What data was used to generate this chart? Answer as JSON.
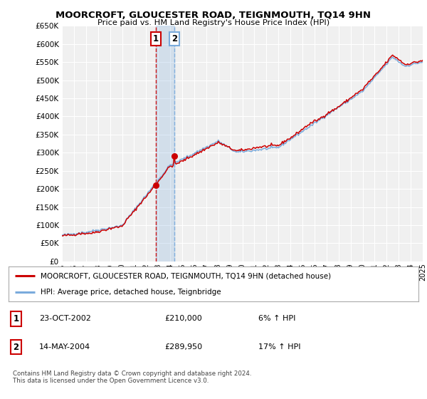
{
  "title": "MOORCROFT, GLOUCESTER ROAD, TEIGNMOUTH, TQ14 9HN",
  "subtitle": "Price paid vs. HM Land Registry's House Price Index (HPI)",
  "legend_line1": "MOORCROFT, GLOUCESTER ROAD, TEIGNMOUTH, TQ14 9HN (detached house)",
  "legend_line2": "HPI: Average price, detached house, Teignbridge",
  "transaction1_label": "1",
  "transaction1_date": "23-OCT-2002",
  "transaction1_price": "£210,000",
  "transaction1_hpi": "6% ↑ HPI",
  "transaction2_label": "2",
  "transaction2_date": "14-MAY-2004",
  "transaction2_price": "£289,950",
  "transaction2_hpi": "17% ↑ HPI",
  "footnote": "Contains HM Land Registry data © Crown copyright and database right 2024.\nThis data is licensed under the Open Government Licence v3.0.",
  "hpi_color": "#7aabdc",
  "price_color": "#cc0000",
  "vline1_color": "#cc0000",
  "vline2_color": "#7aabdc",
  "background_color": "#ffffff",
  "plot_bg_color": "#f0f0f0",
  "grid_color": "#ffffff",
  "ylim": [
    0,
    650000
  ],
  "yticks": [
    0,
    50000,
    100000,
    150000,
    200000,
    250000,
    300000,
    350000,
    400000,
    450000,
    500000,
    550000,
    600000,
    650000
  ],
  "x_start_year": 1995,
  "x_end_year": 2025,
  "transaction1_year": 2002.81,
  "transaction2_year": 2004.37,
  "transaction1_value": 210000,
  "transaction2_value": 289950
}
